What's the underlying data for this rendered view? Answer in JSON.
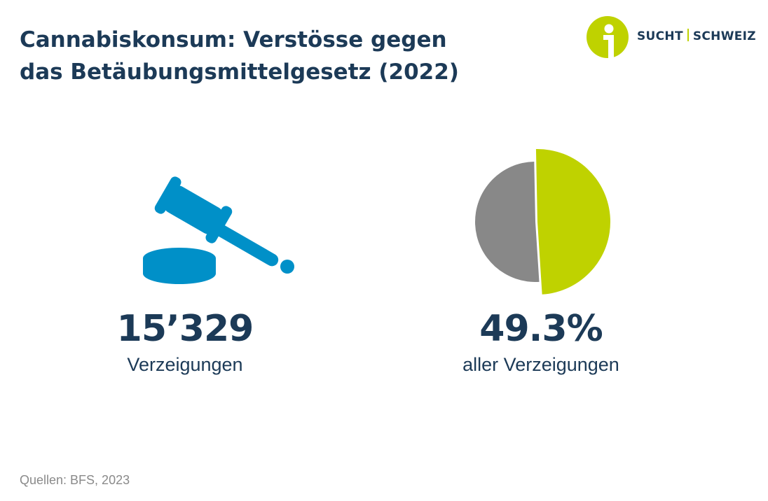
{
  "header": {
    "title_line1": "Cannabiskonsum: Verstösse gegen",
    "title_line2": "das Betäubungsmittelgesetz (2022)"
  },
  "logo": {
    "word1": "SUCHT",
    "word2": "SCHWEIZ",
    "colors": {
      "green": "#bfd200",
      "navy": "#1c3a57"
    }
  },
  "kpis": [
    {
      "value": "15’329",
      "label": "Verzeigungen",
      "icon": "gavel-icon",
      "color": "#0090c8"
    },
    {
      "value": "49.3%",
      "label": "aller Verzeigungen",
      "icon": "pie-chart-icon"
    }
  ],
  "chart_data": {
    "type": "pie",
    "values": [
      49.3,
      50.7
    ],
    "colors": [
      "#bfd200",
      "#888888"
    ],
    "highlight_index": 0
  },
  "footer": {
    "source": "Quellen: BFS, 2023"
  }
}
